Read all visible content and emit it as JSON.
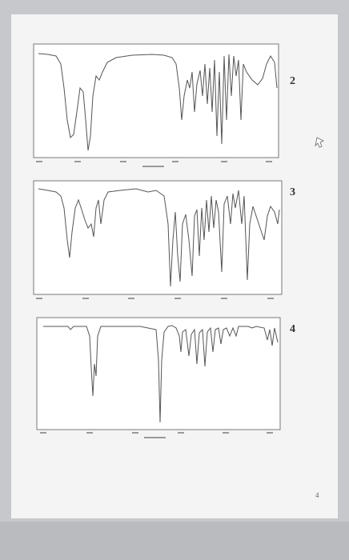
{
  "spectra": [
    {
      "label": "2"
    },
    {
      "label": "3"
    },
    {
      "label": "4"
    }
  ],
  "page_number": "4"
}
